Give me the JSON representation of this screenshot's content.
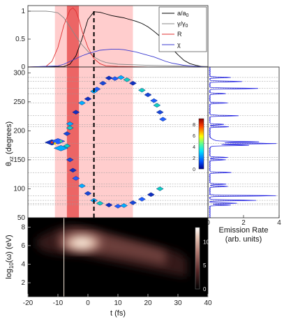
{
  "chart_data": [
    {
      "type": "line",
      "panel": "top",
      "xlim": [
        -20,
        40
      ],
      "ylim": [
        0,
        1.1
      ],
      "yticks": [
        "0",
        "0.5",
        "1"
      ],
      "legend": {
        "placement": "top-right",
        "entries": [
          {
            "label": "a/a",
            "sub": "0",
            "color": "#000000"
          },
          {
            "label": "γ/γ",
            "sub": "0",
            "color": "#888888"
          },
          {
            "label": "R",
            "color": "#e03030"
          },
          {
            "label": "χ",
            "color": "#3a3ad0"
          }
        ]
      },
      "series": [
        {
          "key": "a_over_a0",
          "color": "#000000",
          "x": [
            -20,
            -8,
            -6,
            -4,
            -2,
            0,
            2,
            4,
            6,
            8,
            10,
            12,
            14,
            16,
            18,
            20,
            22,
            24,
            26,
            28,
            30,
            32,
            34,
            36,
            38,
            40
          ],
          "y": [
            0,
            0.01,
            0.05,
            0.2,
            0.5,
            0.85,
            0.99,
            0.98,
            0.95,
            0.92,
            0.9,
            0.88,
            0.85,
            0.82,
            0.78,
            0.72,
            0.64,
            0.55,
            0.45,
            0.33,
            0.22,
            0.12,
            0.06,
            0.03,
            0.01,
            0
          ]
        },
        {
          "key": "gamma_over_gamma0",
          "color": "#888888",
          "x": [
            -20,
            -14,
            -12,
            -10,
            -8,
            -6,
            -4,
            -2,
            0,
            2,
            4,
            6,
            10,
            20,
            30,
            40
          ],
          "y": [
            1,
            1,
            0.99,
            0.97,
            0.88,
            0.72,
            0.55,
            0.4,
            0.28,
            0.18,
            0.12,
            0.08,
            0.05,
            0.03,
            0.02,
            0.01
          ]
        },
        {
          "key": "R",
          "color": "#e03030",
          "x": [
            -20,
            -14,
            -12,
            -10,
            -8,
            -6,
            -5,
            -4,
            -3,
            -2,
            0,
            2,
            4,
            6,
            10,
            20,
            30,
            40
          ],
          "y": [
            0,
            0.01,
            0.1,
            0.35,
            0.75,
            1.02,
            1.06,
            1.0,
            0.85,
            0.65,
            0.35,
            0.15,
            0.06,
            0.02,
            0.01,
            0,
            0,
            0
          ]
        },
        {
          "key": "chi",
          "color": "#3a3ad0",
          "x": [
            -20,
            -10,
            -8,
            -6,
            -4,
            -2,
            0,
            2,
            4,
            6,
            8,
            10,
            12,
            14,
            16,
            18,
            20,
            22,
            24,
            26,
            28,
            30,
            32,
            34,
            36,
            40
          ],
          "y": [
            0,
            0.02,
            0.05,
            0.1,
            0.15,
            0.2,
            0.24,
            0.27,
            0.3,
            0.31,
            0.32,
            0.32,
            0.31,
            0.29,
            0.27,
            0.24,
            0.21,
            0.18,
            0.14,
            0.1,
            0.07,
            0.05,
            0.03,
            0.02,
            0.01,
            0
          ]
        }
      ]
    },
    {
      "type": "scatter",
      "panel": "middle",
      "ylabel": "θ",
      "ylabel_sub": "xz",
      "ylabel_unit": " (degrees)",
      "xlim": [
        -20,
        40
      ],
      "ylim": [
        50,
        310
      ],
      "yticks": [
        "50",
        "100",
        "150",
        "200",
        "250",
        "300"
      ],
      "angles": [
        292,
        285,
        273,
        264,
        248,
        226,
        211,
        207,
        178,
        154,
        150,
        128,
        108,
        104,
        88,
        80,
        75,
        72
      ],
      "points": [
        {
          "x": 7,
          "y": 291
        },
        {
          "x": 9,
          "y": 290
        },
        {
          "x": 11,
          "y": 292
        },
        {
          "x": 13,
          "y": 288
        },
        {
          "x": 5,
          "y": 282
        },
        {
          "x": 15,
          "y": 282
        },
        {
          "x": 3,
          "y": 272
        },
        {
          "x": 2,
          "y": 268
        },
        {
          "x": 18,
          "y": 270
        },
        {
          "x": 20,
          "y": 262
        },
        {
          "x": 0,
          "y": 255
        },
        {
          "x": 22,
          "y": 252
        },
        {
          "x": -2,
          "y": 248
        },
        {
          "x": 23,
          "y": 244
        },
        {
          "x": 24,
          "y": 232
        },
        {
          "x": -4,
          "y": 232
        },
        {
          "x": 25,
          "y": 220
        },
        {
          "x": -6,
          "y": 212
        },
        {
          "x": -6,
          "y": 205
        },
        {
          "x": -7,
          "y": 195
        },
        {
          "x": -12,
          "y": 180
        },
        {
          "x": -10,
          "y": 182
        },
        {
          "x": -9,
          "y": 170
        },
        {
          "x": -7,
          "y": 174
        },
        {
          "x": -6,
          "y": 150
        },
        {
          "x": -5,
          "y": 132
        },
        {
          "x": -4,
          "y": 118
        },
        {
          "x": -2,
          "y": 105
        },
        {
          "x": 24,
          "y": 100
        },
        {
          "x": 0,
          "y": 92
        },
        {
          "x": 21,
          "y": 90
        },
        {
          "x": 18,
          "y": 82
        },
        {
          "x": 2,
          "y": 80
        },
        {
          "x": 4,
          "y": 75
        },
        {
          "x": 15,
          "y": 76
        },
        {
          "x": 7,
          "y": 72
        },
        {
          "x": 10,
          "y": 70
        },
        {
          "x": 12,
          "y": 71
        }
      ],
      "colorbar": {
        "min": 0,
        "max": 9,
        "ticks": [
          "0",
          "2",
          "4",
          "6",
          "8"
        ]
      }
    },
    {
      "type": "line",
      "panel": "right",
      "xlabel": "Emission Rate",
      "xlabel2": "(arb. units)",
      "xlim": [
        0,
        4
      ],
      "xticks": [
        "0",
        "2",
        "4"
      ],
      "ylim": [
        50,
        310
      ],
      "spikes": [
        {
          "angle": 292,
          "value": 1.2
        },
        {
          "angle": 285,
          "value": 1.8
        },
        {
          "angle": 273,
          "value": 2.7
        },
        {
          "angle": 264,
          "value": 0.9
        },
        {
          "angle": 248,
          "value": 1.0
        },
        {
          "angle": 226,
          "value": 1.6
        },
        {
          "angle": 211,
          "value": 0.8
        },
        {
          "angle": 207,
          "value": 1.1
        },
        {
          "angle": 181,
          "value": 2.3
        },
        {
          "angle": 178,
          "value": 3.3
        },
        {
          "angle": 175,
          "value": 2.0
        },
        {
          "angle": 154,
          "value": 1.0
        },
        {
          "angle": 150,
          "value": 0.9
        },
        {
          "angle": 128,
          "value": 1.2
        },
        {
          "angle": 108,
          "value": 0.9
        },
        {
          "angle": 104,
          "value": 1.0
        },
        {
          "angle": 88,
          "value": 3.7
        },
        {
          "angle": 80,
          "value": 2.6
        },
        {
          "angle": 75,
          "value": 1.5
        },
        {
          "angle": 72,
          "value": 1.2
        }
      ]
    },
    {
      "type": "heatmap",
      "panel": "bottom",
      "xlabel": "t (fs)",
      "ylabel": "log",
      "ylabel_sub": "10",
      "ylabel_unit": "(ω) (eV)",
      "xlim": [
        -20,
        40
      ],
      "ylim": [
        0.5,
        9
      ],
      "xticks": [
        "-20",
        "-10",
        "0",
        "10",
        "20",
        "30",
        "40"
      ],
      "yticks": [
        "2",
        "4",
        "6",
        "8"
      ],
      "colorbar": {
        "min": 0,
        "max": 13,
        "ticks": [
          "0",
          "5",
          "10"
        ]
      },
      "peak": {
        "t": -2,
        "log_omega": 6.3
      }
    }
  ],
  "overlays": {
    "shaded_bands": [
      {
        "x0": -11,
        "x1": 15,
        "color": "#ffb8b8",
        "opacity": 0.7
      },
      {
        "x0": -7,
        "x1": -3,
        "color": "#e02020",
        "opacity": 0.6
      }
    ],
    "dashed_line_t": 2,
    "white_line_t": -8
  }
}
